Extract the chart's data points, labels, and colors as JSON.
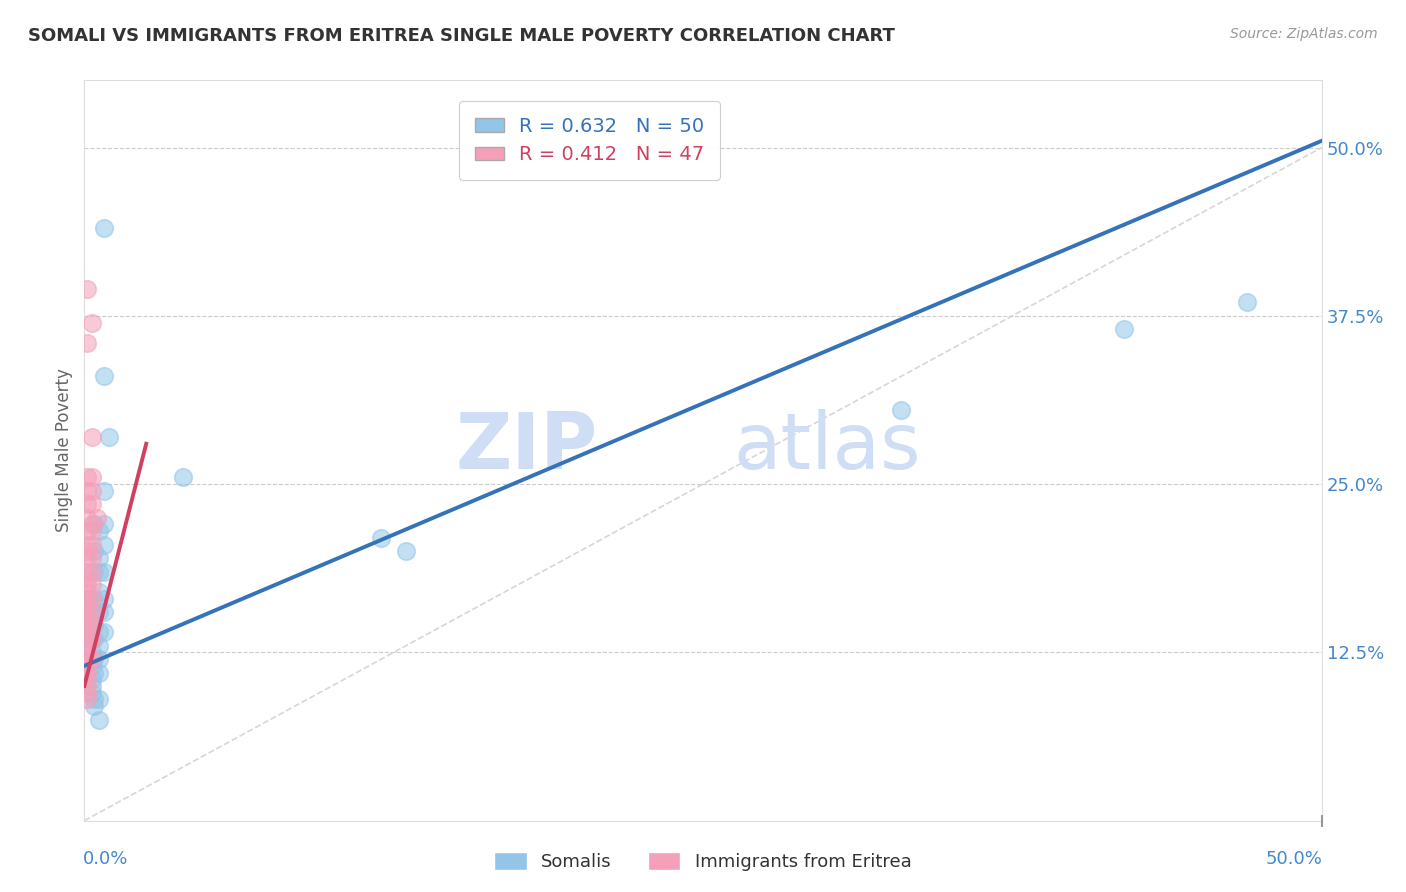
{
  "title": "SOMALI VS IMMIGRANTS FROM ERITREA SINGLE MALE POVERTY CORRELATION CHART",
  "source": "Source: ZipAtlas.com",
  "ylabel": "Single Male Poverty",
  "ytick_labels": [
    "12.5%",
    "25.0%",
    "37.5%",
    "50.0%"
  ],
  "ytick_values": [
    0.125,
    0.25,
    0.375,
    0.5
  ],
  "xtick_values": [
    0.0,
    0.1,
    0.2,
    0.3,
    0.4,
    0.5
  ],
  "xlim": [
    0.0,
    0.5
  ],
  "ylim": [
    0.0,
    0.55
  ],
  "somali_color": "#92C5E8",
  "eritrea_color": "#F4A0B8",
  "trendline_somali_color": "#3572B8",
  "trendline_eritrea_color": "#D04060",
  "diagonal_color": "#D0D0D0",
  "watermark_zip": "ZIP",
  "watermark_atlas": "atlas",
  "watermark_color": "#D0DEF5",
  "background_color": "#FFFFFF",
  "somali_points": [
    [
      0.002,
      0.165
    ],
    [
      0.002,
      0.145
    ],
    [
      0.002,
      0.135
    ],
    [
      0.002,
      0.14
    ],
    [
      0.003,
      0.155
    ],
    [
      0.003,
      0.145
    ],
    [
      0.003,
      0.135
    ],
    [
      0.003,
      0.125
    ],
    [
      0.003,
      0.115
    ],
    [
      0.003,
      0.105
    ],
    [
      0.003,
      0.1
    ],
    [
      0.003,
      0.095
    ],
    [
      0.004,
      0.22
    ],
    [
      0.004,
      0.2
    ],
    [
      0.004,
      0.185
    ],
    [
      0.004,
      0.165
    ],
    [
      0.004,
      0.155
    ],
    [
      0.004,
      0.145
    ],
    [
      0.004,
      0.135
    ],
    [
      0.004,
      0.12
    ],
    [
      0.004,
      0.11
    ],
    [
      0.004,
      0.09
    ],
    [
      0.004,
      0.085
    ],
    [
      0.006,
      0.215
    ],
    [
      0.006,
      0.195
    ],
    [
      0.006,
      0.185
    ],
    [
      0.006,
      0.17
    ],
    [
      0.006,
      0.155
    ],
    [
      0.006,
      0.14
    ],
    [
      0.006,
      0.13
    ],
    [
      0.006,
      0.12
    ],
    [
      0.006,
      0.11
    ],
    [
      0.006,
      0.09
    ],
    [
      0.006,
      0.075
    ],
    [
      0.008,
      0.44
    ],
    [
      0.008,
      0.33
    ],
    [
      0.008,
      0.245
    ],
    [
      0.008,
      0.22
    ],
    [
      0.008,
      0.205
    ],
    [
      0.008,
      0.185
    ],
    [
      0.008,
      0.165
    ],
    [
      0.008,
      0.155
    ],
    [
      0.008,
      0.14
    ],
    [
      0.01,
      0.285
    ],
    [
      0.04,
      0.255
    ],
    [
      0.12,
      0.21
    ],
    [
      0.13,
      0.2
    ],
    [
      0.33,
      0.305
    ],
    [
      0.42,
      0.365
    ],
    [
      0.47,
      0.385
    ]
  ],
  "eritrea_points": [
    [
      0.001,
      0.395
    ],
    [
      0.001,
      0.355
    ],
    [
      0.001,
      0.255
    ],
    [
      0.001,
      0.245
    ],
    [
      0.001,
      0.235
    ],
    [
      0.001,
      0.225
    ],
    [
      0.001,
      0.215
    ],
    [
      0.001,
      0.205
    ],
    [
      0.001,
      0.2
    ],
    [
      0.001,
      0.195
    ],
    [
      0.001,
      0.185
    ],
    [
      0.001,
      0.18
    ],
    [
      0.001,
      0.175
    ],
    [
      0.001,
      0.17
    ],
    [
      0.001,
      0.165
    ],
    [
      0.001,
      0.16
    ],
    [
      0.001,
      0.155
    ],
    [
      0.001,
      0.15
    ],
    [
      0.001,
      0.145
    ],
    [
      0.001,
      0.14
    ],
    [
      0.001,
      0.135
    ],
    [
      0.001,
      0.13
    ],
    [
      0.001,
      0.125
    ],
    [
      0.001,
      0.12
    ],
    [
      0.001,
      0.115
    ],
    [
      0.001,
      0.11
    ],
    [
      0.001,
      0.105
    ],
    [
      0.001,
      0.1
    ],
    [
      0.001,
      0.095
    ],
    [
      0.001,
      0.09
    ],
    [
      0.003,
      0.37
    ],
    [
      0.003,
      0.285
    ],
    [
      0.003,
      0.255
    ],
    [
      0.003,
      0.245
    ],
    [
      0.003,
      0.235
    ],
    [
      0.003,
      0.22
    ],
    [
      0.003,
      0.215
    ],
    [
      0.003,
      0.205
    ],
    [
      0.003,
      0.195
    ],
    [
      0.003,
      0.185
    ],
    [
      0.003,
      0.175
    ],
    [
      0.003,
      0.165
    ],
    [
      0.003,
      0.155
    ],
    [
      0.003,
      0.145
    ],
    [
      0.003,
      0.135
    ],
    [
      0.003,
      0.12
    ],
    [
      0.005,
      0.225
    ]
  ],
  "somali_R": 0.632,
  "somali_N": 50,
  "eritrea_R": 0.412,
  "eritrea_N": 47,
  "trendline_somali": [
    0.0,
    0.5,
    0.115,
    0.505
  ],
  "trendline_eritrea": [
    0.0,
    0.025,
    0.1,
    0.28
  ]
}
